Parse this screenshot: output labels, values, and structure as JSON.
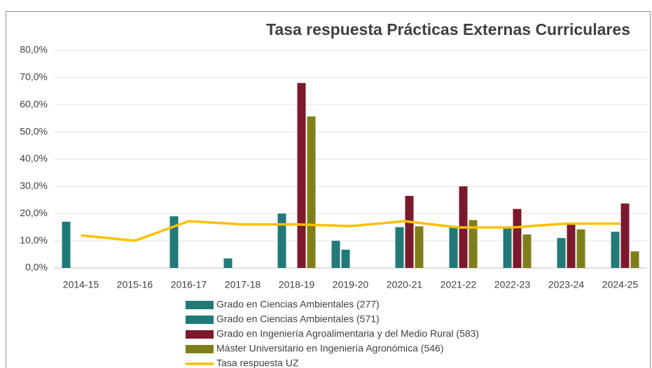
{
  "chart_data": {
    "type": "bar-line",
    "title": "Tasa respuesta Prácticas Externas Curriculares",
    "categories": [
      "2014-15",
      "2015-16",
      "2016-17",
      "2017-18",
      "2018-19",
      "2019-20",
      "2020-21",
      "2021-22",
      "2022-23",
      "2023-24",
      "2024-25"
    ],
    "series": [
      {
        "name": "Grado en Ciencias Ambientales (277)",
        "type": "bar",
        "color": "#217a78",
        "values": [
          17,
          null,
          19,
          3.5,
          20,
          10,
          null,
          null,
          null,
          null,
          null
        ]
      },
      {
        "name": "Grado en Ciencias Ambientales (571)",
        "type": "bar",
        "color": "#217a78",
        "values": [
          null,
          null,
          null,
          null,
          null,
          6.7,
          15,
          15,
          14.8,
          11,
          13.3
        ]
      },
      {
        "name": "Grado en Ingeniería Agroalimentaria y del Medio Rural (583)",
        "type": "bar",
        "color": "#7b1a2c",
        "values": [
          null,
          null,
          null,
          null,
          68,
          null,
          26.5,
          30,
          21.7,
          16,
          23.7
        ]
      },
      {
        "name": "Máster Universitario en Ingeniería Agronómica (546)",
        "type": "bar",
        "color": "#7f7f1a",
        "values": [
          null,
          null,
          null,
          null,
          55.7,
          null,
          15.3,
          17.6,
          12.3,
          14.2,
          6.1
        ]
      },
      {
        "name": "Tasa respuesta UZ",
        "type": "line",
        "color": "#ffc000",
        "values": [
          12,
          10,
          17.2,
          16,
          16,
          15.4,
          17.2,
          14.9,
          14.9,
          16.3,
          16.3
        ]
      }
    ],
    "ylim": [
      0,
      80
    ],
    "yticks": [
      {
        "value": 0,
        "label": "0,0%"
      },
      {
        "value": 10,
        "label": "10,0%"
      },
      {
        "value": 20,
        "label": "20,0%"
      },
      {
        "value": 30,
        "label": "30,0%"
      },
      {
        "value": 40,
        "label": "40,0%"
      },
      {
        "value": 50,
        "label": "50,0%"
      },
      {
        "value": 60,
        "label": "60,0%"
      },
      {
        "value": 70,
        "label": "70,0%"
      },
      {
        "value": 80,
        "label": "80,0%"
      }
    ],
    "grid": true,
    "legend": "bottom"
  }
}
